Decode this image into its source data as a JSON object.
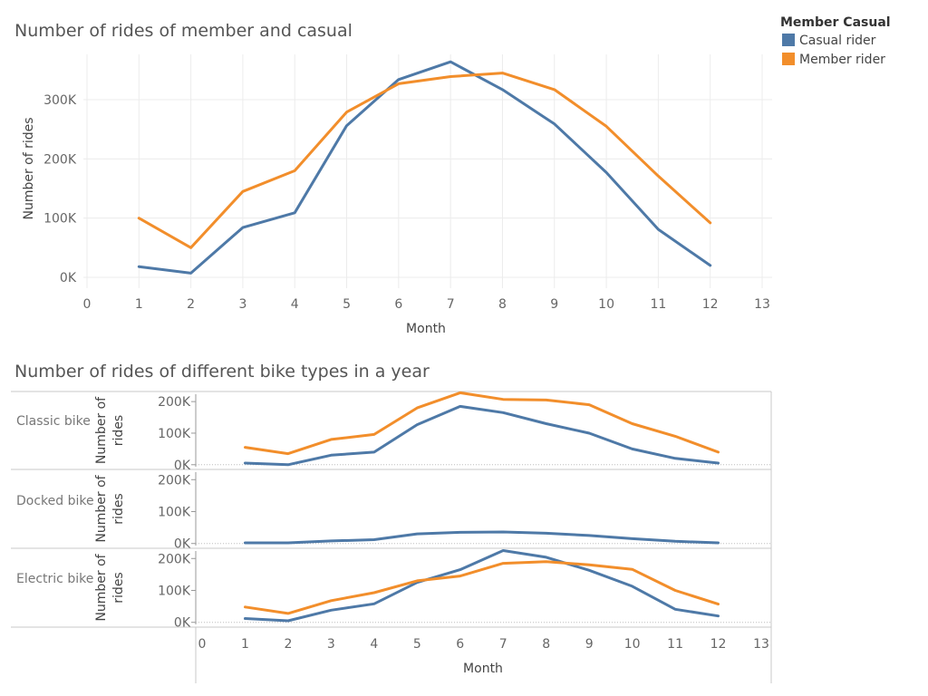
{
  "legend": {
    "title": "Member Casual",
    "items": [
      {
        "label": "Casual rider",
        "color": "#4e79a7"
      },
      {
        "label": "Member rider",
        "color": "#f28e2b"
      }
    ]
  },
  "chart_data": [
    {
      "type": "line",
      "title": "Number of rides of member and casual",
      "xlabel": "Month",
      "ylabel": "Number of rides",
      "x": [
        1,
        2,
        3,
        4,
        5,
        6,
        7,
        8,
        9,
        10,
        11,
        12
      ],
      "xlim": [
        0,
        13
      ],
      "x_ticks": [
        "0",
        "1",
        "2",
        "3",
        "4",
        "5",
        "6",
        "7",
        "8",
        "9",
        "10",
        "11",
        "12",
        "13"
      ],
      "ylim": [
        0,
        370000
      ],
      "y_ticks": [
        {
          "value": 0,
          "label": "0K"
        },
        {
          "value": 100000,
          "label": "100K"
        },
        {
          "value": 200000,
          "label": "200K"
        },
        {
          "value": 300000,
          "label": "300K"
        }
      ],
      "series": [
        {
          "name": "Casual rider",
          "color": "#4e79a7",
          "values": [
            18000,
            7000,
            84000,
            109000,
            256000,
            334000,
            364000,
            317000,
            259000,
            177000,
            81000,
            20000
          ]
        },
        {
          "name": "Member rider",
          "color": "#f28e2b",
          "values": [
            100000,
            50000,
            145000,
            180000,
            279000,
            327000,
            339000,
            345000,
            317000,
            255000,
            171000,
            92000
          ]
        }
      ],
      "grid": true,
      "legend_position": "top-right"
    },
    {
      "type": "line",
      "title": "Number of rides of different bike types in a year",
      "xlabel": "Month",
      "ylabel": "Number of rides",
      "x": [
        1,
        2,
        3,
        4,
        5,
        6,
        7,
        8,
        9,
        10,
        11,
        12
      ],
      "xlim": [
        0,
        13
      ],
      "x_ticks": [
        "0",
        "1",
        "2",
        "3",
        "4",
        "5",
        "6",
        "7",
        "8",
        "9",
        "10",
        "11",
        "12",
        "13"
      ],
      "y_ticks": [
        {
          "value": 0,
          "label": "0K"
        },
        {
          "value": 100000,
          "label": "100K"
        },
        {
          "value": 200000,
          "label": "200K"
        }
      ],
      "facets": [
        {
          "label": "Classic bike",
          "ylim": [
            -15000,
            232000
          ],
          "series": [
            {
              "name": "Casual rider",
              "color": "#4e79a7",
              "values": [
                5000,
                0,
                30000,
                40000,
                127000,
                185000,
                165000,
                130000,
                100000,
                50000,
                20000,
                5000
              ]
            },
            {
              "name": "Member rider",
              "color": "#f28e2b",
              "values": [
                55000,
                35000,
                80000,
                96000,
                180000,
                228000,
                207000,
                205000,
                190000,
                130000,
                90000,
                40000
              ]
            }
          ]
        },
        {
          "label": "Docked bike",
          "ylim": [
            -15000,
            232000
          ],
          "series": [
            {
              "name": "Casual rider",
              "color": "#4e79a7",
              "values": [
                2000,
                2000,
                8000,
                12000,
                30000,
                35000,
                36000,
                32000,
                25000,
                15000,
                7000,
                2000
              ]
            }
          ]
        },
        {
          "label": "Electric bike",
          "ylim": [
            -15000,
            232000
          ],
          "series": [
            {
              "name": "Casual rider",
              "color": "#4e79a7",
              "values": [
                12000,
                5000,
                38000,
                58000,
                125000,
                165000,
                225000,
                204000,
                163000,
                113000,
                41000,
                20000
              ]
            },
            {
              "name": "Member rider",
              "color": "#f28e2b",
              "values": [
                48000,
                28000,
                68000,
                93000,
                130000,
                145000,
                185000,
                190000,
                180000,
                166000,
                100000,
                57000
              ]
            }
          ]
        }
      ],
      "grid": false
    }
  ]
}
